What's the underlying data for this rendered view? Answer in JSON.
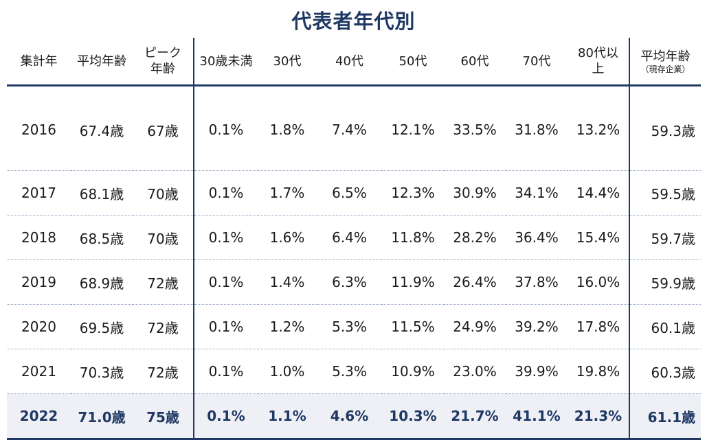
{
  "title": "代表者年代別",
  "headers": {
    "year": "集計年",
    "avg_age": "平均年齢",
    "peak_line1": "ピーク",
    "peak_line2": "年齢",
    "under30": "30歳未満",
    "age30s": "30代",
    "age40s": "40代",
    "age50s": "50代",
    "age60s": "60代",
    "age70s": "70代",
    "age80_line1": "80代以",
    "age80_line2": "上",
    "current_avg": "平均年齢",
    "current_avg_sub": "（現存企業）"
  },
  "rows": [
    {
      "year": "2016",
      "avg": "67.4歳",
      "peak": "67歳",
      "u30": "0.1%",
      "a30": "1.8%",
      "a40": "7.4%",
      "a50": "12.1%",
      "a60": "33.5%",
      "a70": "31.8%",
      "a80": "13.2%",
      "cur": "59.3歳"
    },
    {
      "year": "2017",
      "avg": "68.1歳",
      "peak": "70歳",
      "u30": "0.1%",
      "a30": "1.7%",
      "a40": "6.5%",
      "a50": "12.3%",
      "a60": "30.9%",
      "a70": "34.1%",
      "a80": "14.4%",
      "cur": "59.5歳"
    },
    {
      "year": "2018",
      "avg": "68.5歳",
      "peak": "70歳",
      "u30": "0.1%",
      "a30": "1.6%",
      "a40": "6.4%",
      "a50": "11.8%",
      "a60": "28.2%",
      "a70": "36.4%",
      "a80": "15.4%",
      "cur": "59.7歳"
    },
    {
      "year": "2019",
      "avg": "68.9歳",
      "peak": "72歳",
      "u30": "0.1%",
      "a30": "1.4%",
      "a40": "6.3%",
      "a50": "11.9%",
      "a60": "26.4%",
      "a70": "37.8%",
      "a80": "16.0%",
      "cur": "59.9歳"
    },
    {
      "year": "2020",
      "avg": "69.5歳",
      "peak": "72歳",
      "u30": "0.1%",
      "a30": "1.2%",
      "a40": "5.3%",
      "a50": "11.5%",
      "a60": "24.9%",
      "a70": "39.2%",
      "a80": "17.8%",
      "cur": "60.1歳"
    },
    {
      "year": "2021",
      "avg": "70.3歳",
      "peak": "72歳",
      "u30": "0.1%",
      "a30": "1.0%",
      "a40": "5.3%",
      "a50": "10.9%",
      "a60": "23.0%",
      "a70": "39.9%",
      "a80": "19.8%",
      "cur": "60.3歳"
    },
    {
      "year": "2022",
      "avg": "71.0歳",
      "peak": "75歳",
      "u30": "0.1%",
      "a30": "1.1%",
      "a40": "4.6%",
      "a50": "10.3%",
      "a60": "21.7%",
      "a70": "41.1%",
      "a80": "21.3%",
      "cur": "61.1歳"
    }
  ],
  "colors": {
    "accent": "#1f3864",
    "highlight_bg": "#eef0f5"
  }
}
